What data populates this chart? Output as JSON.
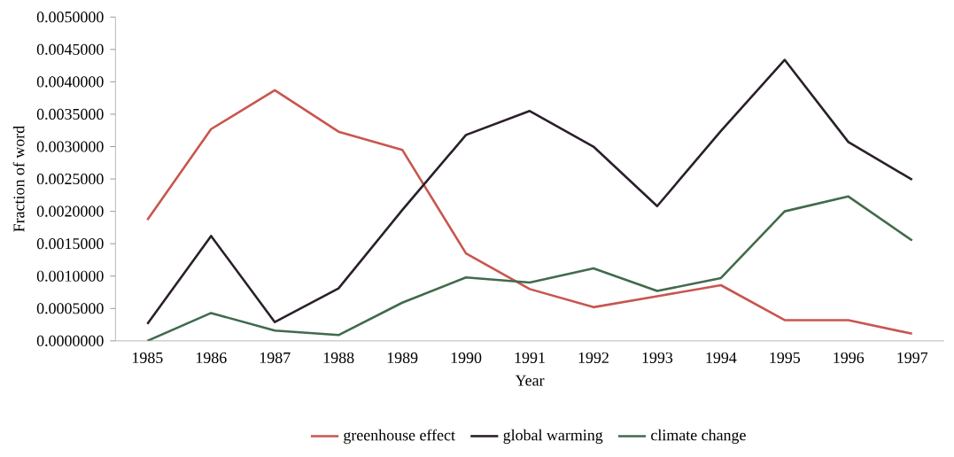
{
  "chart_data": {
    "type": "line",
    "xlabel": "Year",
    "ylabel": "Fraction of word",
    "categories": [
      "1985",
      "1986",
      "1987",
      "1988",
      "1989",
      "1990",
      "1991",
      "1992",
      "1993",
      "1994",
      "1995",
      "1996",
      "1997"
    ],
    "series": [
      {
        "name": "greenhouse effect",
        "color": "#c9554f",
        "values": [
          0.00187,
          0.00327,
          0.00387,
          0.00323,
          0.00295,
          0.00135,
          0.0008,
          0.00052,
          0.00069,
          0.00086,
          0.00032,
          0.00032,
          0.00011
        ]
      },
      {
        "name": "global warming",
        "color": "#2a1f2a",
        "values": [
          0.00026,
          0.00162,
          0.00029,
          0.00081,
          0.00202,
          0.00318,
          0.00355,
          0.003,
          0.00208,
          0.00324,
          0.00434,
          0.00307,
          0.00249
        ]
      },
      {
        "name": "climate change",
        "color": "#416b4c",
        "values": [
          0.0,
          0.00043,
          0.00016,
          9e-05,
          0.00059,
          0.00098,
          0.0009,
          0.00112,
          0.00077,
          0.00097,
          0.002,
          0.00223,
          0.00155
        ]
      }
    ],
    "ylim": [
      0,
      0.005
    ],
    "yticks": [
      {
        "value": 0,
        "label": "0.0000000"
      },
      {
        "value": 0.0005,
        "label": "0.0005000"
      },
      {
        "value": 0.001,
        "label": "0.0010000"
      },
      {
        "value": 0.0015,
        "label": "0.0015000"
      },
      {
        "value": 0.002,
        "label": "0.0020000"
      },
      {
        "value": 0.0025,
        "label": "0.0025000"
      },
      {
        "value": 0.003,
        "label": "0.0030000"
      },
      {
        "value": 0.0035,
        "label": "0.0035000"
      },
      {
        "value": 0.004,
        "label": "0.0040000"
      },
      {
        "value": 0.0045,
        "label": "0.0045000"
      },
      {
        "value": 0.005,
        "label": "0.0050000"
      }
    ],
    "grid": false,
    "legend": "bottom",
    "marker": "none",
    "line_style": "solid"
  }
}
